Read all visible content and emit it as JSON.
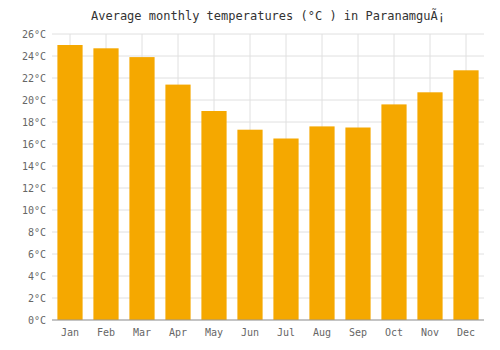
{
  "chart_data": {
    "type": "bar",
    "title": "Average monthly temperatures (°C ) in ParanamguÃ¡",
    "categories": [
      "Jan",
      "Feb",
      "Mar",
      "Apr",
      "May",
      "Jun",
      "Jul",
      "Aug",
      "Sep",
      "Oct",
      "Nov",
      "Dec"
    ],
    "values": [
      25.0,
      24.7,
      23.9,
      21.4,
      19.0,
      17.3,
      16.5,
      17.6,
      17.5,
      19.6,
      20.7,
      22.7
    ],
    "color": "#F5A800",
    "ylim": [
      0,
      26
    ],
    "yticks": [
      {
        "value": 0,
        "label": "0°C"
      },
      {
        "value": 2,
        "label": "2°C"
      },
      {
        "value": 4,
        "label": "4°C"
      },
      {
        "value": 6,
        "label": "6°C"
      },
      {
        "value": 8,
        "label": "8°C"
      },
      {
        "value": 10,
        "label": "10°C"
      },
      {
        "value": 12,
        "label": "12°C"
      },
      {
        "value": 14,
        "label": "14°C"
      },
      {
        "value": 16,
        "label": "16°C"
      },
      {
        "value": 18,
        "label": "18°C"
      },
      {
        "value": 20,
        "label": "20°C"
      },
      {
        "value": 22,
        "label": "22°C"
      },
      {
        "value": 24,
        "label": "24°C"
      },
      {
        "value": 26,
        "label": "26°C"
      }
    ],
    "grid": true
  }
}
